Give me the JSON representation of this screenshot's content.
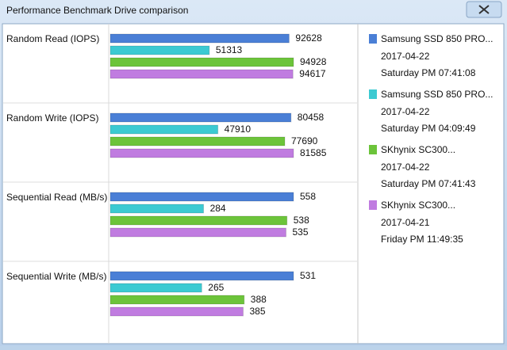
{
  "window_title": "Performance Benchmark Drive comparison",
  "chart_data": {
    "type": "bar",
    "categories": [
      "Random Read (IOPS)",
      "Random Write (IOPS)",
      "Sequential Read (MB/s)",
      "Sequential Write (MB/s)"
    ],
    "series": [
      {
        "name": "Samsung SSD 850 PRO...",
        "date": "2017-04-22",
        "time": "Saturday PM 07:41:08",
        "color": "#4a7fd6",
        "values": [
          92628,
          80458,
          558,
          531
        ]
      },
      {
        "name": "Samsung SSD 850 PRO...",
        "date": "2017-04-22",
        "time": "Saturday PM 04:09:49",
        "color": "#3ccad2",
        "values": [
          51313,
          47910,
          284,
          265
        ]
      },
      {
        "name": "SKhynix SC300...",
        "date": "2017-04-22",
        "time": "Saturday PM 07:41:43",
        "color": "#6cc43a",
        "values": [
          94928,
          77690,
          538,
          388
        ]
      },
      {
        "name": "SKhynix SC300...",
        "date": "2017-04-21",
        "time": "Friday PM 11:49:35",
        "color": "#c07ce0",
        "values": [
          94617,
          81585,
          535,
          385
        ]
      }
    ]
  }
}
